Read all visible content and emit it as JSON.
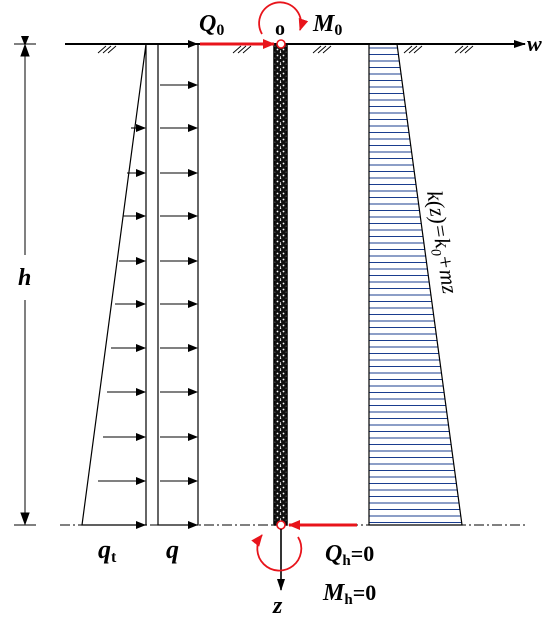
{
  "labels": {
    "h": "h",
    "w": "w",
    "z": "z",
    "o": "o",
    "Q0": "Q",
    "Q0_sub": "0",
    "M0": "M",
    "M0_sub": "0",
    "qt": "q",
    "qt_sub": "t",
    "q": "q",
    "Qh": "Q",
    "Qh_sub": "h",
    "Qh_eq": "=0",
    "Mh": "M",
    "Mh_sub": "h",
    "Mh_eq": "=0",
    "kz_a": "k(z)=k",
    "kz_sub": "0",
    "kz_b": "+mz"
  },
  "colors": {
    "load_arrow": "#e8141b",
    "lines": "#000000",
    "hatch": "#1a3d8f"
  }
}
